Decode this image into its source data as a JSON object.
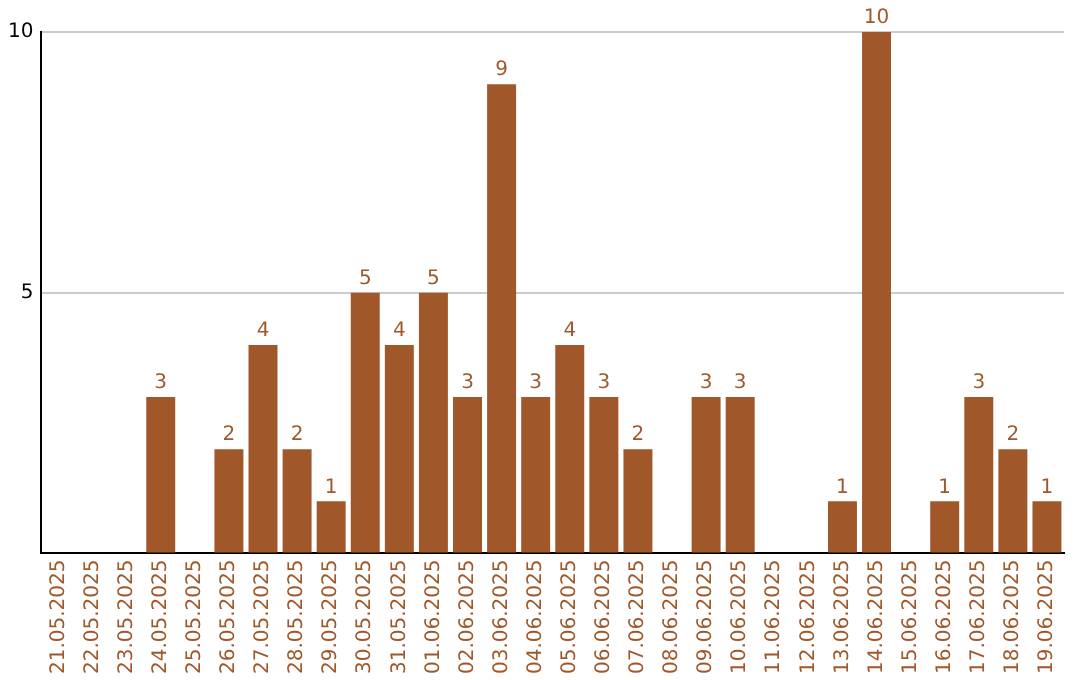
{
  "chart_data": {
    "type": "bar",
    "categories": [
      "21.05.2025",
      "22.05.2025",
      "23.05.2025",
      "24.05.2025",
      "25.05.2025",
      "26.05.2025",
      "27.05.2025",
      "28.05.2025",
      "29.05.2025",
      "30.05.2025",
      "31.05.2025",
      "01.06.2025",
      "02.06.2025",
      "03.06.2025",
      "04.06.2025",
      "05.06.2025",
      "06.06.2025",
      "07.06.2025",
      "08.06.2025",
      "09.06.2025",
      "10.06.2025",
      "11.06.2025",
      "12.06.2025",
      "13.06.2025",
      "14.06.2025",
      "15.06.2025",
      "16.06.2025",
      "17.06.2025",
      "18.06.2025",
      "19.06.2025"
    ],
    "values": [
      null,
      null,
      null,
      3,
      null,
      2,
      4,
      2,
      1,
      5,
      4,
      5,
      3,
      9,
      3,
      4,
      3,
      2,
      null,
      3,
      3,
      null,
      null,
      1,
      10,
      null,
      1,
      3,
      2,
      1
    ],
    "color": "#a0582a",
    "ylim": [
      0,
      10
    ],
    "yticks": [
      {
        "value": 0,
        "label": null
      },
      5,
      10
    ],
    "grid": "y",
    "data_labels": true
  }
}
